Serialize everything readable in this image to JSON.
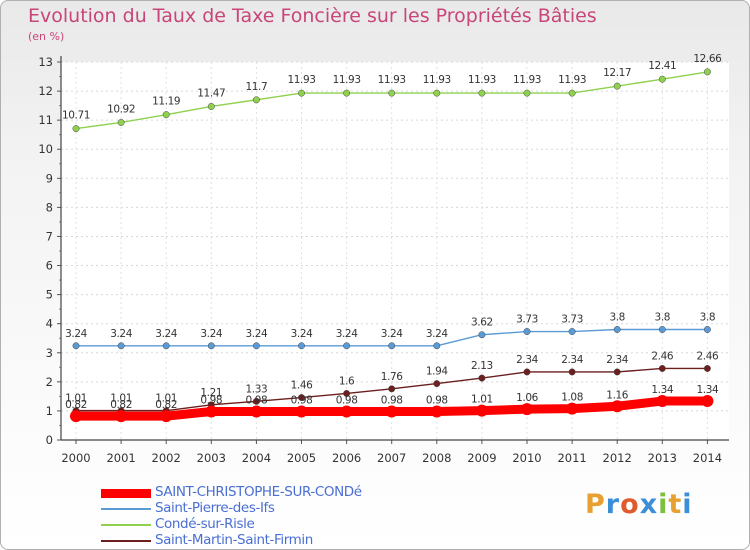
{
  "header": {
    "title": "Evolution du Taux de Taxe Foncière sur les Propriétés Bâties",
    "unit": "(en %)"
  },
  "brand": {
    "text": "Proxiti",
    "colors": [
      "#e8a030",
      "#3a8fd8",
      "#e05a30",
      "#3a8fd8",
      "#7cc040",
      "#e8a030",
      "#3a8fd8"
    ]
  },
  "chart_data": {
    "type": "line",
    "x": [
      "2000",
      "2001",
      "2002",
      "2003",
      "2004",
      "2005",
      "2006",
      "2007",
      "2008",
      "2009",
      "2010",
      "2011",
      "2012",
      "2013",
      "2014"
    ],
    "ylim": [
      0,
      13
    ],
    "yticks": [
      "0",
      "1",
      "2",
      "3",
      "4",
      "5",
      "6",
      "7",
      "8",
      "9",
      "10",
      "11",
      "12",
      "13"
    ],
    "grid": true,
    "legend_position": "bottom-left",
    "series": [
      {
        "name": "SAINT-CHRISTOPHE-SUR-CONDé",
        "color": "#ff0000",
        "values": [
          0.82,
          0.82,
          0.82,
          0.98,
          0.98,
          0.98,
          0.98,
          0.98,
          0.98,
          1.01,
          1.06,
          1.08,
          1.16,
          1.34,
          1.34
        ],
        "labels": [
          "0.82",
          "0.82",
          "0.82",
          "0.98",
          "0.98",
          "0.98",
          "0.98",
          "0.98",
          "0.98",
          "1.01",
          "1.06",
          "1.08",
          "1.16",
          "1.34",
          "1.34"
        ]
      },
      {
        "name": "Saint-Pierre-des-Ifs",
        "color": "#5b9bd5",
        "values": [
          3.24,
          3.24,
          3.24,
          3.24,
          3.24,
          3.24,
          3.24,
          3.24,
          3.24,
          3.62,
          3.73,
          3.73,
          3.8,
          3.8,
          3.8
        ],
        "labels": [
          "3.24",
          "3.24",
          "3.24",
          "3.24",
          "3.24",
          "3.24",
          "3.24",
          "3.24",
          "3.24",
          "3.62",
          "3.73",
          "3.73",
          "3.8",
          "3.8",
          "3.8"
        ]
      },
      {
        "name": "Condé-sur-Risle",
        "color": "#8fd14f",
        "values": [
          10.71,
          10.92,
          11.19,
          11.47,
          11.7,
          11.93,
          11.93,
          11.93,
          11.93,
          11.93,
          11.93,
          11.93,
          12.17,
          12.41,
          12.66
        ],
        "labels": [
          "10.71",
          "10.92",
          "11.19",
          "11.47",
          "11.7",
          "11.93",
          "11.93",
          "11.93",
          "11.93",
          "11.93",
          "11.93",
          "11.93",
          "12.17",
          "12.41",
          "12.66"
        ]
      },
      {
        "name": "Saint-Martin-Saint-Firmin",
        "color": "#6b1f1f",
        "values": [
          1.01,
          1.01,
          1.01,
          1.21,
          1.33,
          1.46,
          1.6,
          1.76,
          1.94,
          2.13,
          2.34,
          2.34,
          2.34,
          2.46,
          2.46
        ],
        "labels": [
          "1.01",
          "1.01",
          "1.01",
          "1.21",
          "1.33",
          "1.46",
          "1.6",
          "1.76",
          "1.94",
          "2.13",
          "2.34",
          "2.34",
          "2.34",
          "2.46",
          "2.46"
        ]
      }
    ]
  }
}
